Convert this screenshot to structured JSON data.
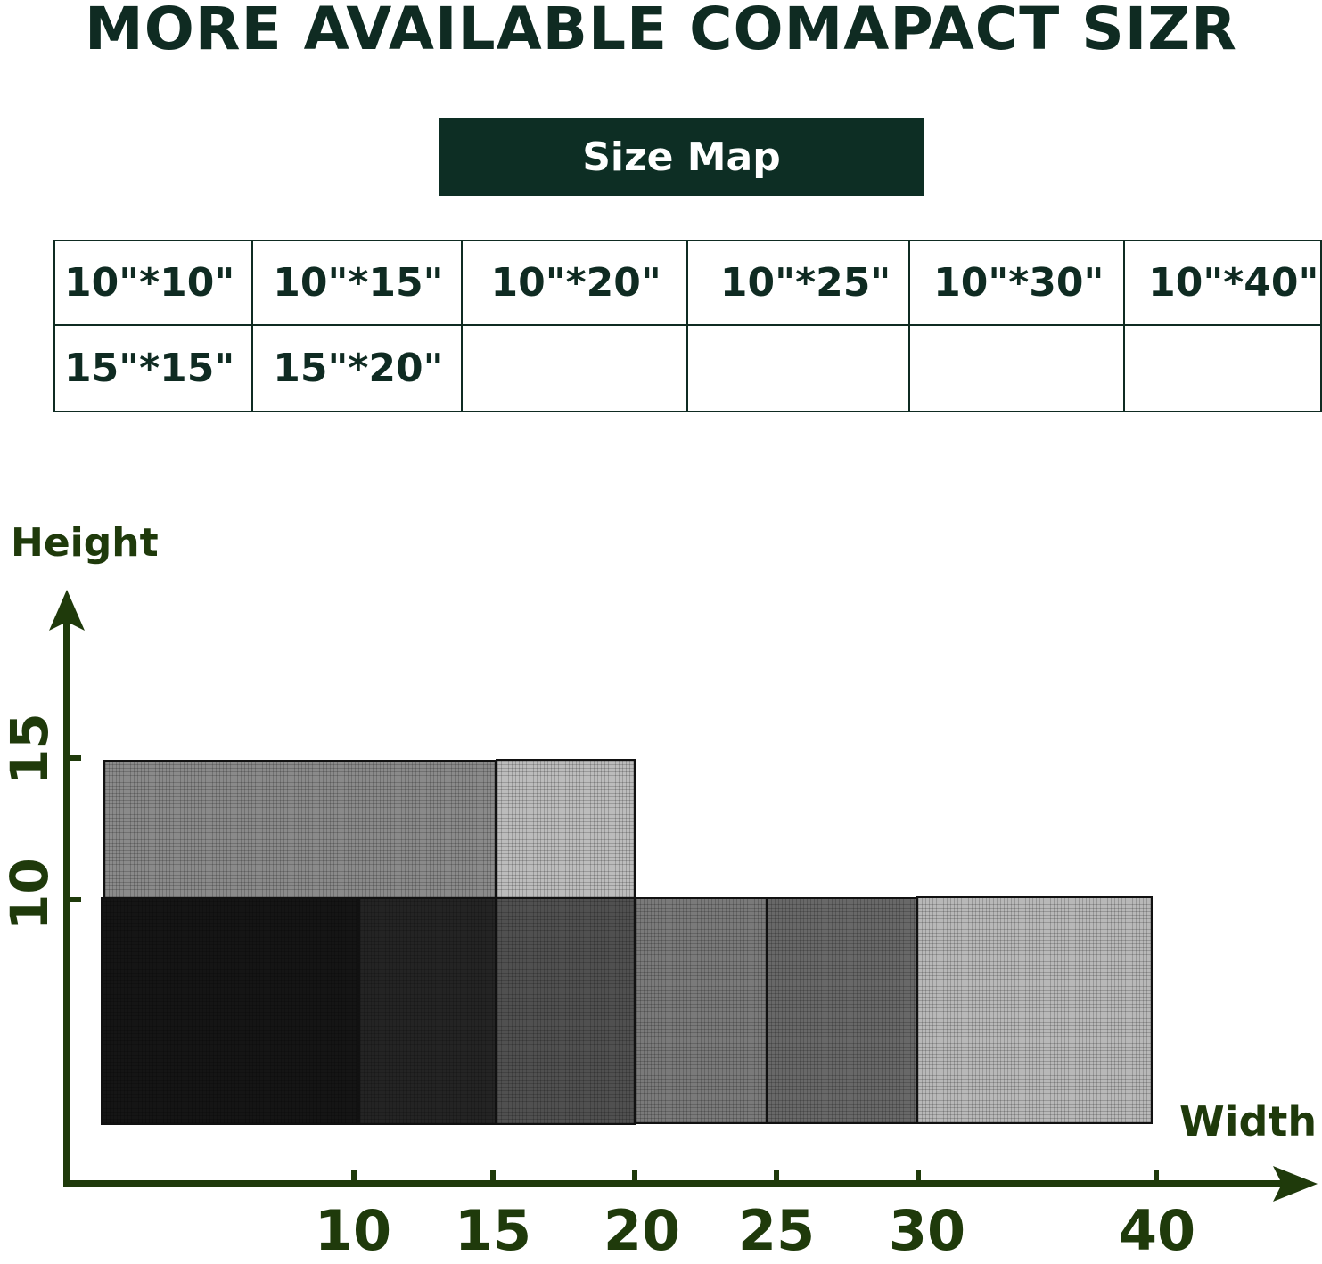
{
  "title": "MORE AVAILABLE COMAPACT SIZR",
  "size_map_label": "Size Map",
  "table": {
    "rows": [
      [
        "10\"*10\"",
        "10\"*15\"",
        "10\"*20\"",
        "10\"*25\"",
        "10\"*30\"",
        "10\"*40\""
      ],
      [
        "15\"*15\"",
        "15\"*20\"",
        "",
        "",
        "",
        ""
      ]
    ]
  },
  "diagram": {
    "y_axis_label": "Height",
    "x_axis_label": "Width",
    "y_ticks": [
      "15",
      "10"
    ],
    "x_ticks": [
      "10",
      "15",
      "20",
      "25",
      "30",
      "40"
    ],
    "axis_color": "#1f3a0b",
    "title_color": "#0f2b22"
  }
}
